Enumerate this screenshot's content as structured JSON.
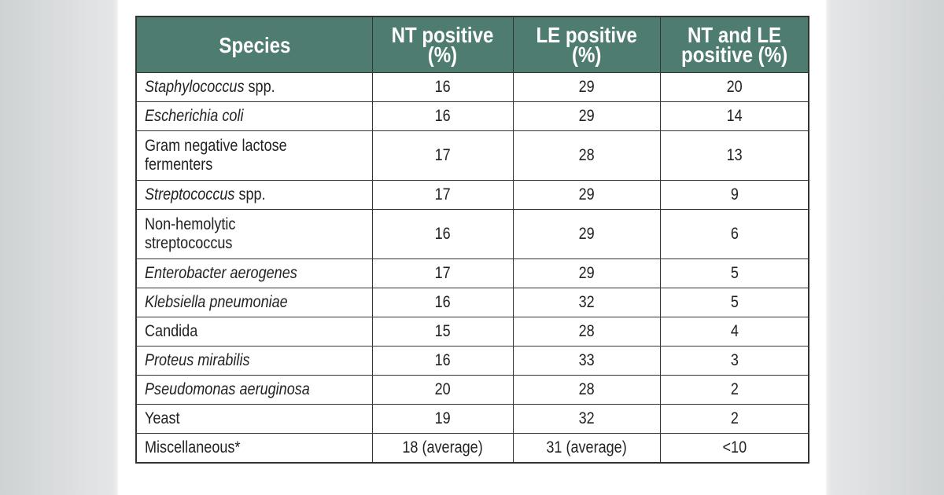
{
  "table": {
    "headers": [
      "Species",
      "NT positive (%)",
      "LE positive (%)",
      "NT and LE positive (%)"
    ],
    "header_lines": [
      [
        "Species"
      ],
      [
        "NT positive",
        "(%)"
      ],
      [
        "LE positive",
        "(%)"
      ],
      [
        "NT and LE",
        "positive (%)"
      ]
    ],
    "header_color": "#4f7c71",
    "rows": [
      {
        "species_italic": "Staphylococcus",
        "species_plain": " spp.",
        "species_lines": [],
        "nt": "16",
        "le": "29",
        "both": "20"
      },
      {
        "species_italic": "Escherichia coli",
        "species_plain": "",
        "species_lines": [],
        "nt": "16",
        "le": "29",
        "both": "14"
      },
      {
        "species_italic": "",
        "species_plain": "",
        "species_lines": [
          "Gram negative lactose",
          "fermenters"
        ],
        "nt": "17",
        "le": "28",
        "both": "13"
      },
      {
        "species_italic": "Streptococcus",
        "species_plain": " spp.",
        "species_lines": [],
        "nt": "17",
        "le": "29",
        "both": "9"
      },
      {
        "species_italic": "",
        "species_plain": "",
        "species_lines": [
          "Non-hemolytic",
          "streptococcus"
        ],
        "nt": "16",
        "le": "29",
        "both": "6"
      },
      {
        "species_italic": "Enterobacter aerogenes",
        "species_plain": "",
        "species_lines": [],
        "nt": "17",
        "le": "29",
        "both": "5"
      },
      {
        "species_italic": "Klebsiella pneumoniae",
        "species_plain": "",
        "species_lines": [],
        "nt": "16",
        "le": "32",
        "both": "5"
      },
      {
        "species_italic": "",
        "species_plain": "Candida",
        "species_lines": [],
        "nt": "15",
        "le": "28",
        "both": "4"
      },
      {
        "species_italic": "Proteus mirabilis",
        "species_plain": "",
        "species_lines": [],
        "nt": "16",
        "le": "33",
        "both": "3"
      },
      {
        "species_italic": "Pseudomonas aeruginosa",
        "species_plain": "",
        "species_lines": [],
        "nt": "20",
        "le": "28",
        "both": "2"
      },
      {
        "species_italic": "",
        "species_plain": "Yeast",
        "species_lines": [],
        "nt": "19",
        "le": "32",
        "both": "2"
      },
      {
        "species_italic": "",
        "species_plain": "Miscellaneous*",
        "species_lines": [],
        "nt": "18 (average)",
        "le": "31 (average)",
        "both": "<10"
      }
    ]
  }
}
